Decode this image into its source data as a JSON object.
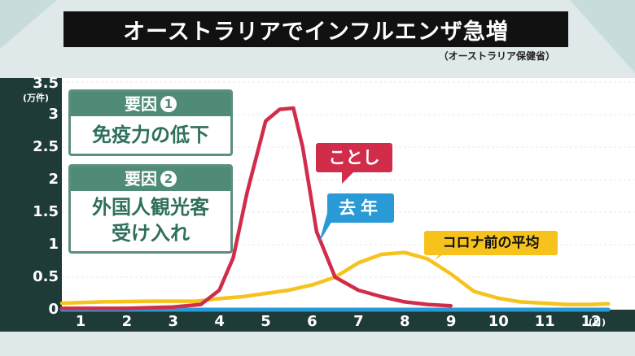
{
  "title": "オーストラリアでインフルエンザ急増",
  "source": "（オーストラリア保健省）",
  "unit": "(万件)",
  "x_unit": "(月)",
  "factors": [
    {
      "heading": "要因",
      "number": "1",
      "lines": [
        "免疫力の低下"
      ]
    },
    {
      "heading": "要因",
      "number": "2",
      "lines": [
        "外国人観光客",
        "受け入れ"
      ]
    }
  ],
  "colors": {
    "this_year": "#d12c4a",
    "last_year": "#2a9ad6",
    "pre_covid": "#f6c21b",
    "axis_panel": "#1e3b38"
  },
  "chart_data": {
    "type": "line",
    "title": "オーストラリアでインフルエンザ急増",
    "xlabel": "(月)",
    "ylabel": "(万件)",
    "x_ticks": [
      "1",
      "2",
      "3",
      "4",
      "5",
      "6",
      "7",
      "8",
      "9",
      "10",
      "11",
      "12"
    ],
    "y_ticks": [
      "0",
      "0.5",
      "1",
      "1.5",
      "2",
      "2.5",
      "3",
      "3.5"
    ],
    "xlim": [
      0.6,
      12.8
    ],
    "ylim": [
      0,
      3.5
    ],
    "series": [
      {
        "name": "ことし",
        "color": "#d12c4a",
        "points": [
          [
            0.6,
            0.02
          ],
          [
            1,
            0.02
          ],
          [
            2,
            0.02
          ],
          [
            3,
            0.04
          ],
          [
            3.6,
            0.08
          ],
          [
            4,
            0.3
          ],
          [
            4.3,
            0.8
          ],
          [
            4.6,
            1.8
          ],
          [
            5,
            2.9
          ],
          [
            5.3,
            3.08
          ],
          [
            5.6,
            3.1
          ],
          [
            5.8,
            2.5
          ],
          [
            6.1,
            1.2
          ],
          [
            6.5,
            0.5
          ],
          [
            7,
            0.3
          ],
          [
            7.5,
            0.2
          ],
          [
            8,
            0.12
          ],
          [
            8.5,
            0.08
          ],
          [
            9,
            0.06
          ]
        ]
      },
      {
        "name": "去年",
        "color": "#2a9ad6",
        "points": [
          [
            0.6,
            0.0
          ],
          [
            2,
            0.0
          ],
          [
            4,
            0.0
          ],
          [
            6,
            0.0
          ],
          [
            8,
            0.0
          ],
          [
            10,
            0.0
          ],
          [
            12,
            0.0
          ],
          [
            12.4,
            0.0
          ]
        ]
      },
      {
        "name": "コロナ前の平均",
        "color": "#f6c21b",
        "points": [
          [
            0.6,
            0.1
          ],
          [
            1.5,
            0.12
          ],
          [
            2.5,
            0.13
          ],
          [
            3.5,
            0.13
          ],
          [
            4,
            0.17
          ],
          [
            4.5,
            0.2
          ],
          [
            5,
            0.25
          ],
          [
            5.5,
            0.3
          ],
          [
            6,
            0.38
          ],
          [
            6.5,
            0.5
          ],
          [
            7,
            0.72
          ],
          [
            7.5,
            0.85
          ],
          [
            8,
            0.88
          ],
          [
            8.5,
            0.78
          ],
          [
            9,
            0.55
          ],
          [
            9.5,
            0.28
          ],
          [
            10,
            0.18
          ],
          [
            10.5,
            0.12
          ],
          [
            11,
            0.1
          ],
          [
            11.5,
            0.08
          ],
          [
            12,
            0.08
          ],
          [
            12.4,
            0.09
          ]
        ]
      }
    ]
  }
}
